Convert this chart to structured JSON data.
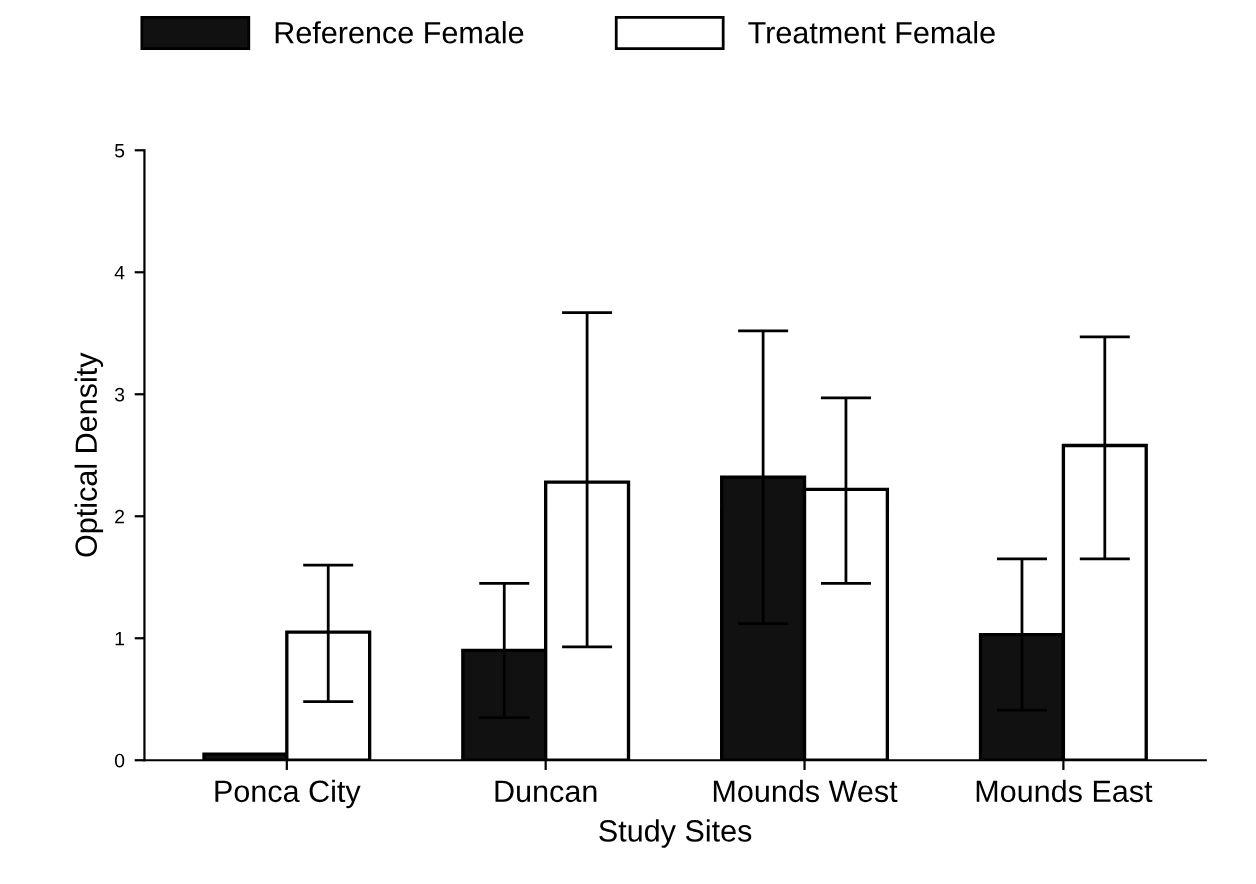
{
  "chart_data": {
    "type": "bar",
    "xlabel": "Study Sites",
    "ylabel": "Optical Density",
    "categories": [
      "Ponca City",
      "Duncan",
      "Mounds West",
      "Mounds East"
    ],
    "series": [
      {
        "name": "Reference Female",
        "color": "#111111",
        "values": [
          0.05,
          0.9,
          2.32,
          1.03
        ],
        "errors": [
          null,
          [
            0.35,
            1.45
          ],
          [
            1.12,
            3.52
          ],
          [
            0.41,
            1.65
          ]
        ]
      },
      {
        "name": "Treatment Female",
        "color": "#ffffff",
        "values": [
          1.05,
          2.28,
          2.22,
          2.58
        ],
        "errors": [
          [
            0.48,
            1.6
          ],
          [
            0.93,
            3.67
          ],
          [
            1.45,
            2.97
          ],
          [
            1.65,
            3.47
          ]
        ]
      }
    ],
    "ylim": [
      0,
      5
    ],
    "yticks": [
      0,
      1,
      2,
      3,
      4,
      5
    ],
    "grid": false,
    "legend": "top"
  }
}
